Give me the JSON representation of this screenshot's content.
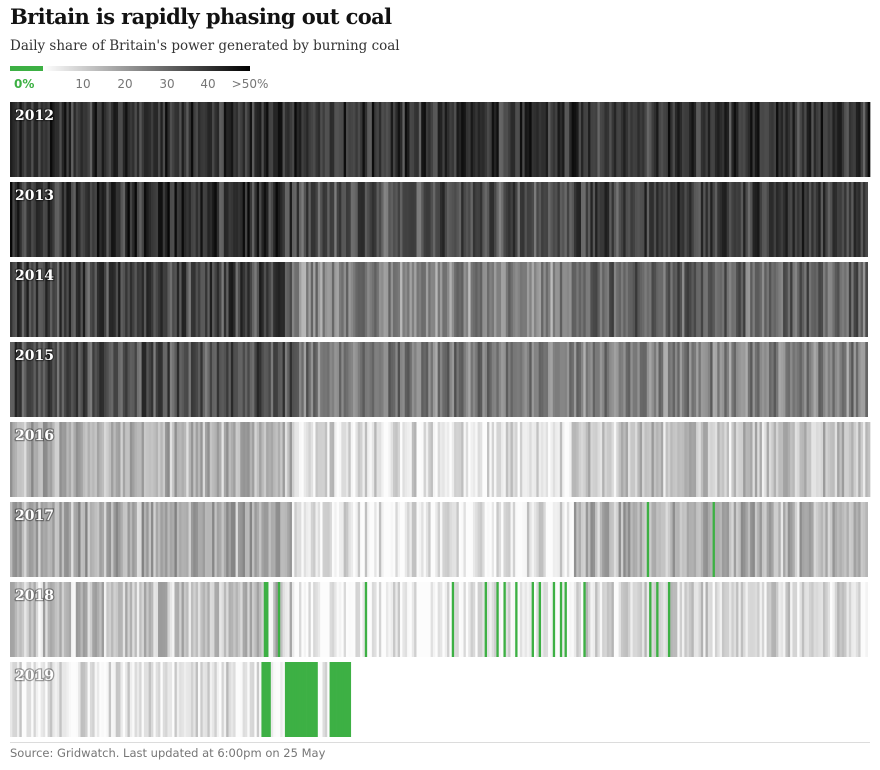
{
  "title": "Britain is rapidly phasing out coal",
  "subtitle": "Daily share of Britain's power generated by burning coal",
  "legend": {
    "labels": [
      {
        "text": "0%",
        "value": 0
      },
      {
        "text": "10",
        "value": 10
      },
      {
        "text": "20",
        "value": 20
      },
      {
        "text": "30",
        "value": 30
      },
      {
        "text": "40",
        "value": 40
      },
      {
        "text": ">50%",
        "value": 50
      }
    ],
    "zero_color": "#3db044",
    "gradient_colors": [
      "#ffffff",
      "#000000"
    ]
  },
  "source": "Source: Gridwatch. Last updated at 6:00pm on 25 May",
  "chart_data": {
    "type": "heatmap",
    "title": "Britain is rapidly phasing out coal",
    "subtitle": "Daily share of Britain's power generated by burning coal",
    "value_unit": "%",
    "value_range": [
      0,
      50
    ],
    "days_per_row": 366,
    "rows": [
      {
        "label": "2012",
        "days": 366,
        "segments": [
          {
            "from": 1,
            "to": 366,
            "share": 40
          }
        ]
      },
      {
        "label": "2013",
        "days": 365,
        "segments": [
          {
            "from": 1,
            "to": 120,
            "share": 41
          },
          {
            "from": 121,
            "to": 240,
            "share": 35
          },
          {
            "from": 241,
            "to": 365,
            "share": 38
          }
        ]
      },
      {
        "label": "2014",
        "days": 365,
        "segments": [
          {
            "from": 1,
            "to": 120,
            "share": 37
          },
          {
            "from": 121,
            "to": 240,
            "share": 24
          },
          {
            "from": 241,
            "to": 365,
            "share": 31
          }
        ]
      },
      {
        "label": "2015",
        "days": 365,
        "segments": [
          {
            "from": 1,
            "to": 120,
            "share": 35
          },
          {
            "from": 121,
            "to": 240,
            "share": 27
          },
          {
            "from": 241,
            "to": 365,
            "share": 25
          }
        ]
      },
      {
        "label": "2016",
        "days": 366,
        "segments": [
          {
            "from": 1,
            "to": 120,
            "share": 16
          },
          {
            "from": 121,
            "to": 240,
            "share": 7
          },
          {
            "from": 241,
            "to": 366,
            "share": 12
          }
        ]
      },
      {
        "label": "2017",
        "days": 365,
        "segments": [
          {
            "from": 1,
            "to": 120,
            "share": 17
          },
          {
            "from": 121,
            "to": 240,
            "share": 5
          },
          {
            "from": 241,
            "to": 365,
            "share": 15
          }
        ]
      },
      {
        "label": "2018",
        "days": 365,
        "segments": [
          {
            "from": 1,
            "to": 120,
            "share": 12
          },
          {
            "from": 121,
            "to": 240,
            "share": 3
          },
          {
            "from": 241,
            "to": 365,
            "share": 8
          }
        ]
      },
      {
        "label": "2019",
        "days": 145,
        "segments": [
          {
            "from": 1,
            "to": 107,
            "share": 6
          },
          {
            "from": 108,
            "to": 145,
            "share": 2
          }
        ]
      }
    ],
    "zero_coal_days": {
      "2017": [
        272,
        300
      ],
      "2018": [
        109,
        110,
        115,
        152,
        189,
        203,
        208,
        211,
        216,
        223,
        226,
        232,
        235,
        237,
        245,
        273,
        276,
        281
      ],
      "2019": [
        108,
        109,
        110,
        111,
        118,
        119,
        120,
        121,
        122,
        123,
        124,
        125,
        126,
        127,
        128,
        129,
        130,
        131,
        137,
        138,
        139,
        140,
        141,
        142,
        143,
        144,
        145
      ]
    }
  }
}
